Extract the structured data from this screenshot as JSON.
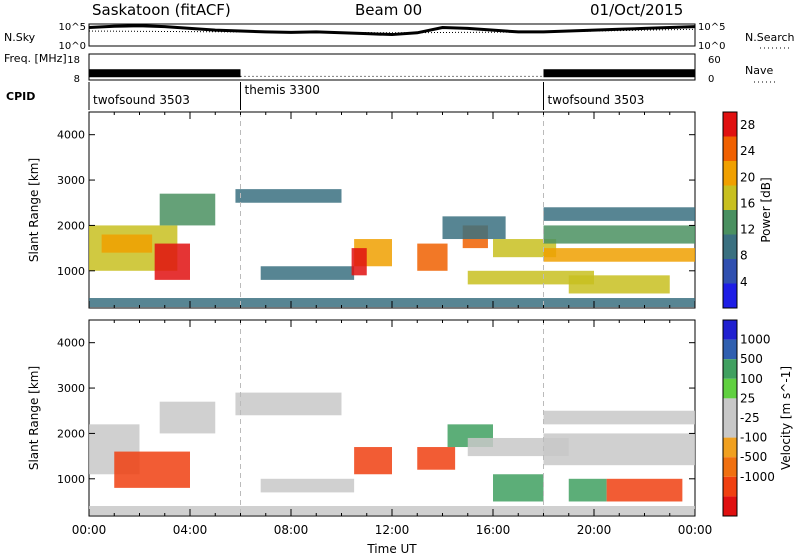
{
  "header": {
    "station": "Saskatoon (fitACF)",
    "beam": "Beam 00",
    "date": "01/Oct/2015"
  },
  "chart_data": [
    {
      "type": "line",
      "title": "",
      "ylabel_left": "N.Sky",
      "ylabel_right": "N.Search",
      "left_ticks": [
        "10^5",
        "10^0"
      ],
      "right_ticks": [
        "10^5",
        "10^0"
      ],
      "series": [
        {
          "name": "N.Sky",
          "points": [
            [
              0,
              4.2
            ],
            [
              1,
              4.5
            ],
            [
              2,
              4.6
            ],
            [
              3,
              4.4
            ],
            [
              4,
              4.0
            ],
            [
              5,
              3.6
            ],
            [
              6,
              3.4
            ],
            [
              7,
              3.2
            ],
            [
              8,
              3.1
            ],
            [
              9,
              3.2
            ],
            [
              10,
              3.0
            ],
            [
              11,
              2.8
            ],
            [
              12,
              2.6
            ],
            [
              13,
              3.0
            ],
            [
              14,
              4.2
            ],
            [
              15,
              4.0
            ],
            [
              16,
              3.6
            ],
            [
              17,
              3.2
            ],
            [
              18,
              3.2
            ],
            [
              19,
              3.4
            ],
            [
              20,
              3.6
            ],
            [
              21,
              3.8
            ],
            [
              22,
              4.0
            ],
            [
              23,
              4.2
            ],
            [
              24,
              4.4
            ]
          ]
        },
        {
          "name": "N.Search",
          "points": [
            [
              0,
              3.4
            ],
            [
              6,
              3.2
            ],
            [
              12,
              3.0
            ],
            [
              18,
              3.2
            ],
            [
              24,
              3.8
            ]
          ]
        }
      ]
    },
    {
      "type": "line",
      "ylabel_left": "Freq. [MHz]",
      "ylabel_right": "Nave",
      "left_ticks": [
        "18",
        "8"
      ],
      "right_ticks": [
        "60",
        "0"
      ],
      "series": [
        {
          "name": "Freq.",
          "points": [
            [
              0,
              10.6
            ],
            [
              6,
              10.6
            ],
            [
              18,
              10.6
            ],
            [
              24,
              10.6
            ]
          ],
          "dense_until": 6,
          "dense_from": 18
        },
        {
          "name": "Nave",
          "points": [
            [
              6,
              9.4
            ],
            [
              18,
              9.4
            ]
          ]
        }
      ]
    },
    {
      "type": "table",
      "label": "CPID",
      "segments": [
        {
          "name": "twofsound 3503",
          "start": 0,
          "end": 6
        },
        {
          "name": "themis 3300",
          "start": 6,
          "end": 18
        },
        {
          "name": "twofsound 3503",
          "start": 18,
          "end": 24
        }
      ]
    },
    {
      "type": "heatmap",
      "quantity": "Power",
      "ylabel": "Slant Range [km]",
      "xlabel": "Time UT",
      "x_ticks": [
        "00:00",
        "04:00",
        "08:00",
        "12:00",
        "16:00",
        "20:00",
        "00:00"
      ],
      "y_ticks": [
        1000,
        2000,
        3000,
        4000
      ],
      "xlim": [
        0,
        24
      ],
      "ylim": [
        180,
        4500
      ],
      "colorbar": {
        "label": "Power [dB]",
        "ticks": [
          "4",
          "8",
          "12",
          "16",
          "20",
          "24",
          "28"
        ],
        "range": [
          0,
          30
        ]
      },
      "regions": [
        {
          "t0": 0,
          "t1": 3.5,
          "r0": 1000,
          "r1": 2000,
          "v": 18
        },
        {
          "t0": 2.6,
          "t1": 4.0,
          "r0": 800,
          "r1": 1600,
          "v": 27
        },
        {
          "t0": 0.5,
          "t1": 2.5,
          "r0": 1400,
          "r1": 1800,
          "v": 22
        },
        {
          "t0": 2.8,
          "t1": 5.0,
          "r0": 2000,
          "r1": 2700,
          "v": 12
        },
        {
          "t0": 5.8,
          "t1": 10.0,
          "r0": 2500,
          "r1": 2800,
          "v": 10
        },
        {
          "t0": 6.8,
          "t1": 10.5,
          "r0": 800,
          "r1": 1100,
          "v": 9
        },
        {
          "t0": 10.5,
          "t1": 12.0,
          "r0": 1100,
          "r1": 1700,
          "v": 22
        },
        {
          "t0": 10.4,
          "t1": 11.0,
          "r0": 900,
          "r1": 1500,
          "v": 27
        },
        {
          "t0": 13.0,
          "t1": 14.2,
          "r0": 1000,
          "r1": 1600,
          "v": 26
        },
        {
          "t0": 14.8,
          "t1": 15.8,
          "r0": 1500,
          "r1": 2000,
          "v": 24
        },
        {
          "t0": 14.0,
          "t1": 16.5,
          "r0": 1700,
          "r1": 2200,
          "v": 10
        },
        {
          "t0": 16.0,
          "t1": 18.5,
          "r0": 1300,
          "r1": 1700,
          "v": 17
        },
        {
          "t0": 18.0,
          "t1": 24.0,
          "r0": 1200,
          "r1": 1500,
          "v": 22
        },
        {
          "t0": 18.0,
          "t1": 24.0,
          "r0": 1600,
          "r1": 2000,
          "v": 12
        },
        {
          "t0": 15.0,
          "t1": 20.0,
          "r0": 700,
          "r1": 1000,
          "v": 15
        },
        {
          "t0": 19.0,
          "t1": 23.0,
          "r0": 500,
          "r1": 900,
          "v": 18
        },
        {
          "t0": 18.0,
          "t1": 24.0,
          "r0": 2100,
          "r1": 2400,
          "v": 9
        },
        {
          "t0": 0,
          "t1": 24.0,
          "r0": 200,
          "r1": 400,
          "v": 8
        }
      ]
    },
    {
      "type": "heatmap",
      "quantity": "Velocity",
      "ylabel": "Slant Range [km]",
      "xlabel": "Time UT",
      "x_ticks": [
        "00:00",
        "04:00",
        "08:00",
        "12:00",
        "16:00",
        "20:00",
        "00:00"
      ],
      "y_ticks": [
        1000,
        2000,
        3000,
        4000
      ],
      "xlim": [
        0,
        24
      ],
      "ylim": [
        180,
        4500
      ],
      "colorbar": {
        "label": "Velocity [m s^-1]",
        "ticks": [
          "1000",
          "500",
          "100",
          "25",
          "-25",
          "-100",
          "-500",
          "-1000"
        ],
        "range": [
          -1000,
          1000
        ]
      },
      "regions": [
        {
          "t0": 0,
          "t1": 2.0,
          "r0": 1100,
          "r1": 2200,
          "v": 0
        },
        {
          "t0": 1.0,
          "t1": 4.0,
          "r0": 800,
          "r1": 1600,
          "v": -250
        },
        {
          "t0": 2.8,
          "t1": 5.0,
          "r0": 2000,
          "r1": 2700,
          "v": 0
        },
        {
          "t0": 5.8,
          "t1": 10.0,
          "r0": 2400,
          "r1": 2900,
          "v": 0
        },
        {
          "t0": 6.8,
          "t1": 10.5,
          "r0": 700,
          "r1": 1000,
          "v": 0
        },
        {
          "t0": 10.5,
          "t1": 12.0,
          "r0": 1100,
          "r1": 1700,
          "v": -250
        },
        {
          "t0": 13.0,
          "t1": 14.5,
          "r0": 1200,
          "r1": 1700,
          "v": -100
        },
        {
          "t0": 14.2,
          "t1": 16.0,
          "r0": 1700,
          "r1": 2200,
          "v": 300
        },
        {
          "t0": 15.0,
          "t1": 19.0,
          "r0": 1500,
          "r1": 1900,
          "v": 0
        },
        {
          "t0": 18.0,
          "t1": 24.0,
          "r0": 1300,
          "r1": 2000,
          "v": 0
        },
        {
          "t0": 16.0,
          "t1": 18.0,
          "r0": 500,
          "r1": 1100,
          "v": 150
        },
        {
          "t0": 19.0,
          "t1": 20.5,
          "r0": 500,
          "r1": 1000,
          "v": 150
        },
        {
          "t0": 20.5,
          "t1": 23.5,
          "r0": 500,
          "r1": 1000,
          "v": -300
        },
        {
          "t0": 18.0,
          "t1": 24.0,
          "r0": 2200,
          "r1": 2500,
          "v": 0
        },
        {
          "t0": 0,
          "t1": 24.0,
          "r0": 200,
          "r1": 400,
          "v": 0
        }
      ]
    }
  ]
}
